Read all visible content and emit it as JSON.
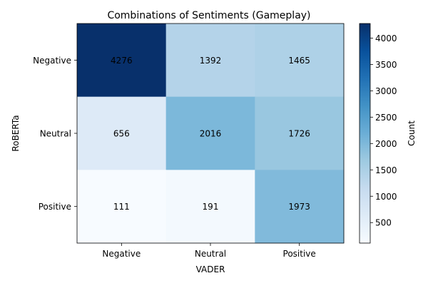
{
  "chart_data": {
    "type": "heatmap",
    "title": "Combinations of Sentiments (Gameplay)",
    "xlabel": "VADER",
    "ylabel": "RoBERTa",
    "x_categories": [
      "Negative",
      "Neutral",
      "Positive"
    ],
    "y_categories": [
      "Negative",
      "Neutral",
      "Positive"
    ],
    "values": [
      [
        4276,
        1392,
        1465
      ],
      [
        656,
        2016,
        1726
      ],
      [
        111,
        191,
        1973
      ]
    ],
    "colormap": "Blues",
    "colorbar": {
      "label": "Count",
      "ticks": [
        500,
        1000,
        1500,
        2000,
        2500,
        3000,
        3500,
        4000
      ],
      "range": [
        111,
        4276
      ]
    },
    "colors": {
      "low": "#f7fbff",
      "high": "#08306b",
      "cell_text": "#000000",
      "axis": "#000000"
    }
  }
}
